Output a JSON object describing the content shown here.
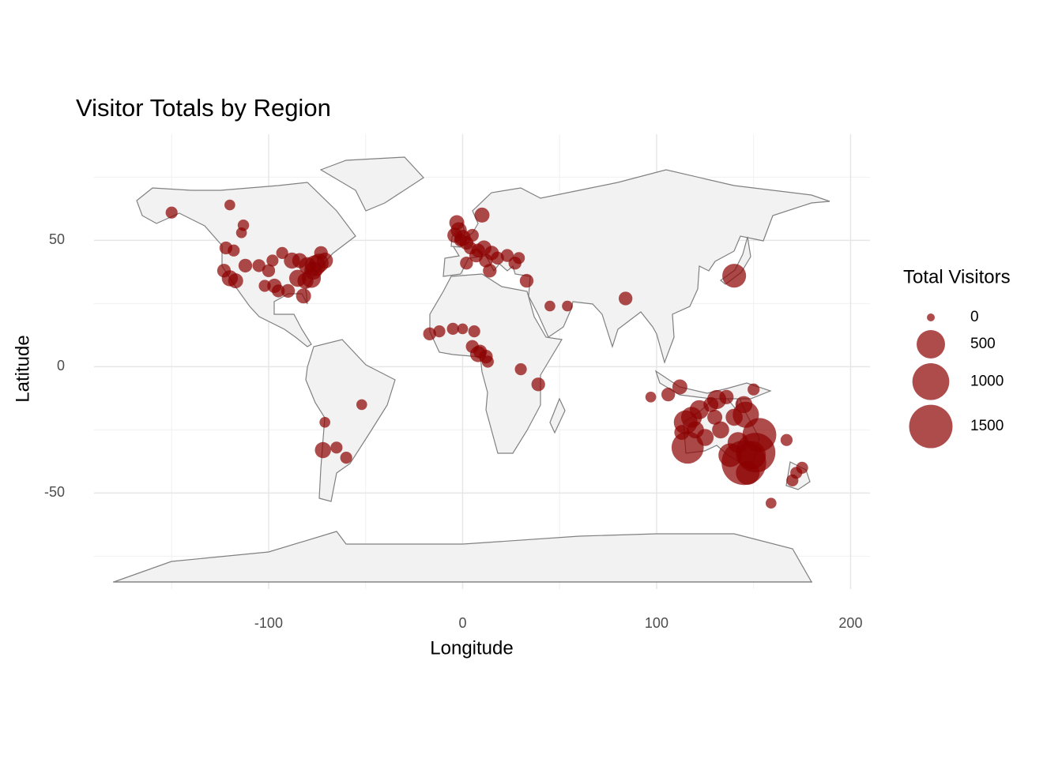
{
  "chart_data": {
    "type": "scatter",
    "title": "Visitor Totals by Region",
    "x_label": "Longitude",
    "y_label": "Latitude",
    "x": [
      -150,
      -120,
      -113,
      -114,
      -122,
      -118,
      -123,
      -120,
      -117,
      -112,
      -105,
      -98,
      -100,
      -97,
      -95,
      -90,
      -82,
      -88,
      -84,
      -80,
      -76,
      -74,
      -71,
      -78,
      -85,
      -81,
      -77,
      -73,
      -102,
      -93,
      -3,
      -2,
      -4,
      0,
      -1,
      2,
      5,
      10,
      11,
      8,
      2,
      15,
      12,
      18,
      23,
      27,
      29,
      7,
      4,
      14,
      33,
      45,
      54,
      84,
      -17,
      -12,
      -5,
      0,
      6,
      5,
      8,
      9,
      12,
      13,
      30,
      39,
      -52,
      -71,
      -72,
      -65,
      -60,
      140,
      97,
      106,
      112,
      116,
      115,
      118,
      122,
      131,
      133,
      138,
      145,
      151,
      153,
      146,
      147,
      149,
      142,
      140,
      145,
      136,
      125,
      130,
      128,
      120,
      113,
      150,
      167,
      172,
      175,
      170,
      159
    ],
    "y": [
      61,
      64,
      56,
      53,
      47,
      46,
      38,
      35,
      34,
      40,
      40,
      42,
      38,
      32,
      30,
      30,
      28,
      42,
      42,
      40,
      40,
      41,
      42,
      35,
      35,
      34,
      38,
      45,
      32,
      45,
      57,
      54,
      52,
      51,
      50,
      49,
      52,
      60,
      47,
      46,
      41,
      45,
      42,
      43,
      44,
      41,
      43,
      44,
      47,
      38,
      34,
      24,
      24,
      27,
      13,
      14,
      15,
      15,
      14,
      8,
      5,
      6,
      4,
      2,
      -1,
      -7,
      -15,
      -22,
      -33,
      -32,
      -36,
      36,
      -12,
      -11,
      -8,
      -32,
      -22,
      -20,
      -17,
      -13,
      -25,
      -35,
      -38,
      -34,
      -27,
      -19,
      -42,
      -35,
      -30,
      -20,
      -15,
      -12,
      -28,
      -20,
      -15,
      -25,
      -26,
      -9,
      -29,
      -42,
      -40,
      -45,
      -54
    ],
    "size": [
      20,
      10,
      15,
      10,
      30,
      20,
      40,
      80,
      60,
      40,
      30,
      20,
      30,
      50,
      30,
      40,
      60,
      80,
      60,
      100,
      200,
      150,
      80,
      150,
      100,
      80,
      120,
      40,
      20,
      20,
      60,
      80,
      60,
      80,
      30,
      40,
      30,
      60,
      60,
      40,
      30,
      50,
      40,
      30,
      30,
      30,
      20,
      40,
      30,
      40,
      40,
      10,
      10,
      40,
      30,
      20,
      20,
      10,
      20,
      30,
      80,
      40,
      40,
      20,
      20,
      40,
      10,
      10,
      80,
      20,
      20,
      300,
      10,
      40,
      60,
      700,
      300,
      200,
      150,
      150,
      100,
      300,
      1600,
      1200,
      800,
      400,
      300,
      500,
      200,
      100,
      100,
      50,
      100,
      60,
      60,
      100,
      60,
      20,
      20,
      20,
      20,
      20,
      10
    ],
    "color": "#8b0000",
    "opacity": 0.7,
    "xlim": [
      -190,
      210
    ],
    "ylim": [
      -88,
      92
    ],
    "xticks": [
      -100,
      0,
      100,
      200
    ],
    "yticks": [
      -50,
      0,
      50
    ],
    "grid": true,
    "size_legend": {
      "title": "Total Visitors",
      "values": [
        0,
        500,
        1000,
        1500
      ]
    }
  }
}
